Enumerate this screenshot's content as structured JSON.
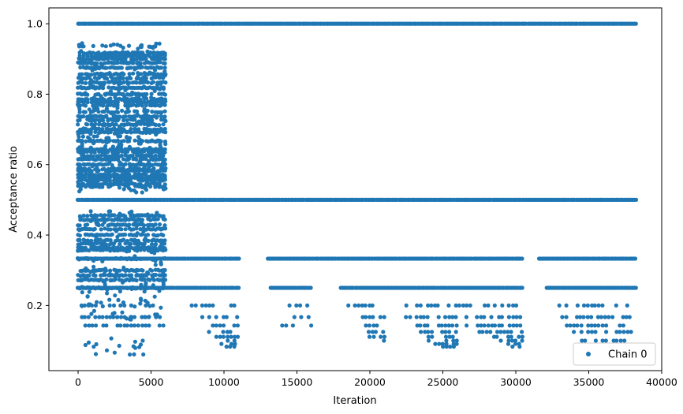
{
  "chart_data": {
    "type": "scatter",
    "xlabel": "Iteration",
    "ylabel": "Acceptance ratio",
    "xlim": [
      -2000,
      40000
    ],
    "ylim": [
      0.015,
      1.045
    ],
    "xticks": [
      0,
      5000,
      10000,
      15000,
      20000,
      25000,
      30000,
      35000,
      40000
    ],
    "xtick_labels": [
      "0",
      "5000",
      "10000",
      "15000",
      "20000",
      "25000",
      "30000",
      "35000",
      "40000"
    ],
    "yticks": [
      0.2,
      0.4,
      0.6,
      0.8,
      1.0
    ],
    "ytick_labels": [
      "0.2",
      "0.4",
      "0.6",
      "0.8",
      "1.0"
    ],
    "grid": false,
    "legend": {
      "position": "bottom-right",
      "entries": [
        "Chain 0"
      ]
    },
    "marker_color": "#1f77b4",
    "series": [
      {
        "name": "Chain 0",
        "bands": [
          {
            "y": 1.0,
            "x_ranges": [
              [
                0,
                38300
              ]
            ]
          },
          {
            "y": 0.5,
            "x_ranges": [
              [
                0,
                38300
              ]
            ]
          },
          {
            "y": 0.333,
            "x_ranges": [
              [
                0,
                11000
              ],
              [
                13000,
                30500
              ],
              [
                31600,
                38300
              ]
            ]
          },
          {
            "y": 0.25,
            "x_ranges": [
              [
                0,
                11000
              ],
              [
                13200,
                16000
              ],
              [
                18000,
                30500
              ],
              [
                32100,
                38300
              ]
            ]
          },
          {
            "y": 0.2,
            "x_ranges": [
              [
                0,
                6000
              ],
              [
                7800,
                11000
              ],
              [
                14500,
                16000
              ],
              [
                18500,
                21000
              ],
              [
                22000,
                30500
              ],
              [
                33000,
                38300
              ]
            ]
          },
          {
            "y": 0.167,
            "x_ranges": [
              [
                0,
                6000
              ],
              [
                8500,
                11000
              ],
              [
                14800,
                16000
              ],
              [
                19500,
                21000
              ],
              [
                22500,
                30500
              ],
              [
                33200,
                38300
              ]
            ]
          },
          {
            "y": 0.143,
            "x_ranges": [
              [
                0,
                6000
              ],
              [
                9000,
                11000
              ],
              [
                14000,
                16000
              ],
              [
                19500,
                21000
              ],
              [
                23000,
                30500
              ],
              [
                33500,
                38000
              ]
            ]
          },
          {
            "y": 0.125,
            "x_ranges": [
              [
                9000,
                11000
              ],
              [
                19700,
                21000
              ],
              [
                23500,
                26000
              ],
              [
                27500,
                30500
              ],
              [
                34000,
                38000
              ]
            ]
          },
          {
            "y": 0.111,
            "x_ranges": [
              [
                9500,
                11000
              ],
              [
                20000,
                21000
              ],
              [
                24000,
                26000
              ],
              [
                28000,
                30500
              ]
            ]
          },
          {
            "y": 0.1,
            "x_ranges": [
              [
                9500,
                11000
              ],
              [
                20500,
                21000
              ],
              [
                24000,
                26000
              ],
              [
                29000,
                30500
              ],
              [
                34500,
                37500
              ]
            ]
          },
          {
            "y": 0.091,
            "x_ranges": [
              [
                9800,
                11000
              ],
              [
                24500,
                26000
              ],
              [
                29500,
                30500
              ]
            ]
          },
          {
            "y": 0.083,
            "x_ranges": [
              [
                10200,
                11000
              ],
              [
                25000,
                26000
              ],
              [
                29800,
                30500
              ]
            ]
          }
        ],
        "early_region": {
          "x_range": [
            0,
            6000
          ],
          "y_max": 0.945,
          "y_min": 0.06,
          "dense_levels": [
            0.917,
            0.909,
            0.9,
            0.889,
            0.875,
            0.857,
            0.846,
            0.833,
            0.818,
            0.8,
            0.786,
            0.778,
            0.769,
            0.75,
            0.737,
            0.727,
            0.714,
            0.7,
            0.692,
            0.667,
            0.643,
            0.636,
            0.625,
            0.615,
            0.6,
            0.588,
            0.583,
            0.571,
            0.563,
            0.556,
            0.545,
            0.538,
            0.455,
            0.444,
            0.429,
            0.417,
            0.4,
            0.385,
            0.375,
            0.364,
            0.357,
            0.333,
            0.3,
            0.286,
            0.273,
            0.25
          ]
        }
      }
    ]
  }
}
